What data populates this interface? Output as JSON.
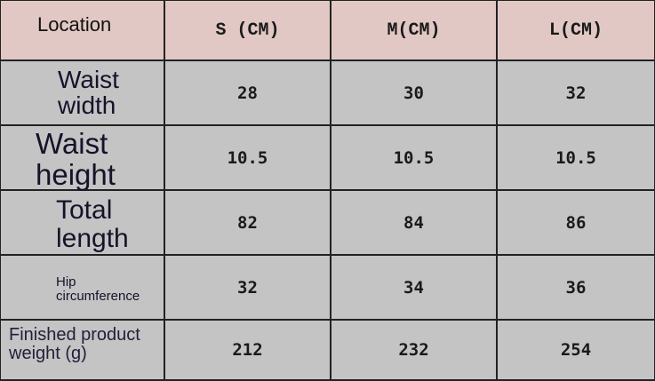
{
  "table": {
    "header": [
      "Location",
      "S (CM)",
      "M(CM)",
      "L(CM)"
    ],
    "rows": [
      {
        "label": [
          "Waist",
          "width"
        ],
        "values": [
          "28",
          "30",
          "32"
        ]
      },
      {
        "label": [
          "Waist",
          "height"
        ],
        "values": [
          "10.5",
          "10.5",
          "10.5"
        ]
      },
      {
        "label": [
          "Total",
          "length"
        ],
        "values": [
          "82",
          "84",
          "86"
        ]
      },
      {
        "label": [
          "Hip",
          "circumference"
        ],
        "values": [
          "32",
          "34",
          "36"
        ]
      },
      {
        "label": [
          "Finished product",
          "weight (g)"
        ],
        "values": [
          "212",
          "232",
          "254"
        ]
      }
    ]
  },
  "colors": {
    "header_bg": "#e2c8c4",
    "body_bg": "#c4c4c4",
    "border": "#222222"
  }
}
